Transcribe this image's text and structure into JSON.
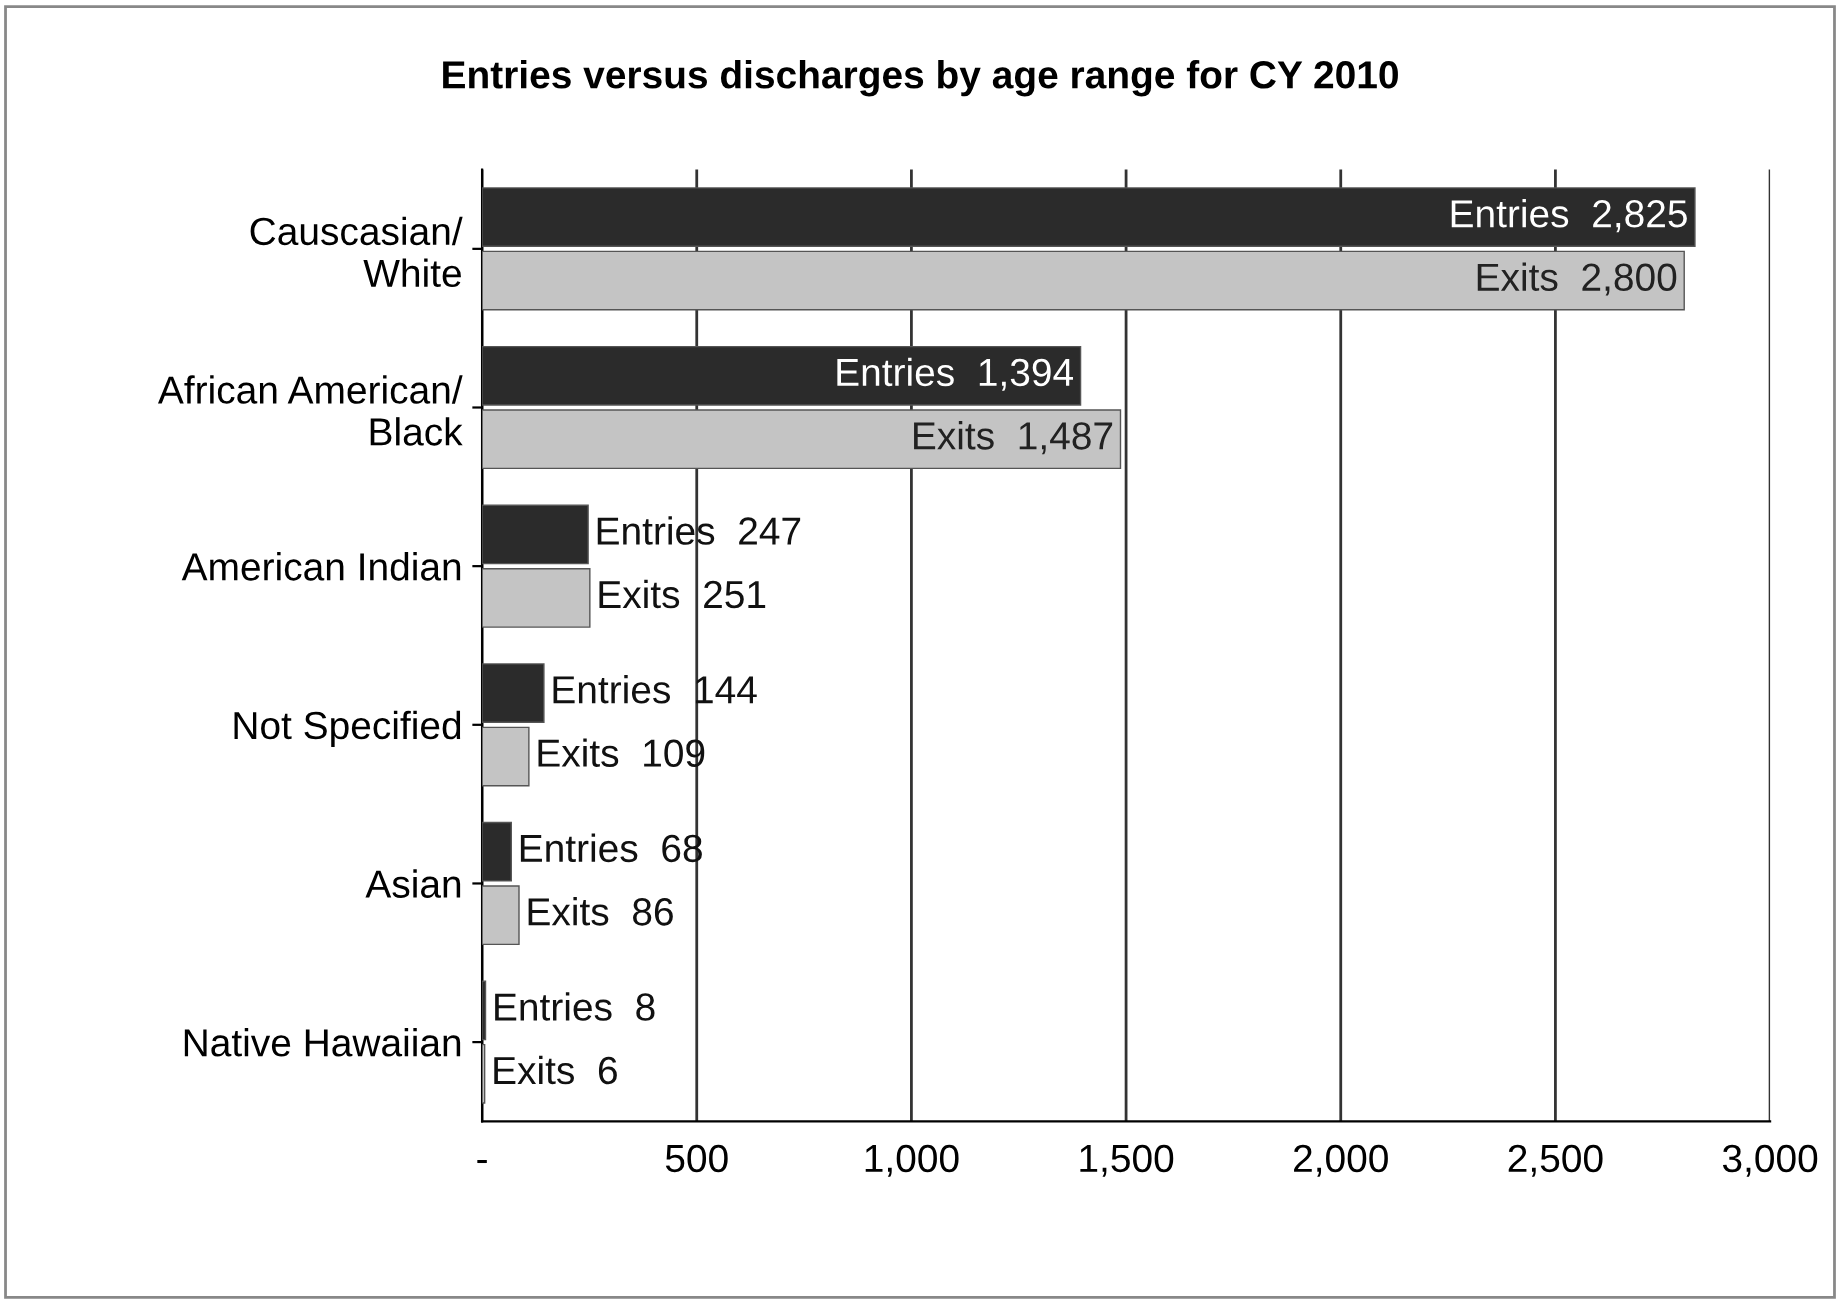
{
  "chart_data": {
    "type": "bar",
    "orientation": "horizontal",
    "title": "Entries versus discharges by age range for CY 2010",
    "categories": [
      "Causcasian/\nWhite",
      "African American/\nBlack",
      "American Indian",
      "Not Specified",
      "Asian",
      "Native Hawaiian"
    ],
    "series": [
      {
        "name": "Entries",
        "color": "#2b2b2b",
        "values": [
          2825,
          1394,
          247,
          144,
          68,
          8
        ],
        "value_labels": [
          "2,825",
          "1,394",
          "247",
          "144",
          "68",
          "8"
        ]
      },
      {
        "name": "Exits",
        "color": "#c4c4c4",
        "values": [
          2800,
          1487,
          251,
          109,
          86,
          6
        ],
        "value_labels": [
          "2,800",
          "1,487",
          "251",
          "109",
          "86",
          "6"
        ]
      }
    ],
    "xlim": [
      0,
      3000
    ],
    "xticks": [
      {
        "value": 0,
        "label": "-"
      },
      500,
      {
        "value": 1000,
        "label": "1,000"
      },
      {
        "value": 1500,
        "label": "1,500"
      },
      {
        "value": 2000,
        "label": "2,000"
      },
      {
        "value": 2500,
        "label": "2,500"
      },
      {
        "value": 3000,
        "label": "3,000"
      }
    ],
    "grid": "x",
    "legend": false
  }
}
